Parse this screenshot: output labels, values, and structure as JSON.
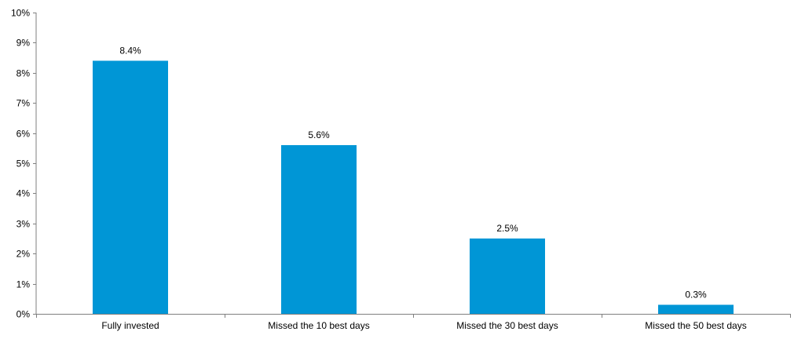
{
  "chart_data": {
    "type": "bar",
    "title": "",
    "xlabel": "",
    "ylabel": "",
    "categories": [
      "Fully invested",
      "Missed the 10 best days",
      "Missed the 30 best days",
      "Missed the 50 best days"
    ],
    "values": [
      8.4,
      5.6,
      2.5,
      0.3
    ],
    "value_labels": [
      "8.4%",
      "5.6%",
      "2.5%",
      "0.3%"
    ],
    "ylim": [
      0,
      10
    ],
    "y_ticks": [
      0,
      1,
      2,
      3,
      4,
      5,
      6,
      7,
      8,
      9,
      10
    ],
    "y_tick_labels": [
      "0%",
      "1%",
      "2%",
      "3%",
      "4%",
      "5%",
      "6%",
      "7%",
      "8%",
      "9%",
      "10%"
    ],
    "grid": false,
    "legend": "none",
    "bar_color": "#0096d6"
  }
}
